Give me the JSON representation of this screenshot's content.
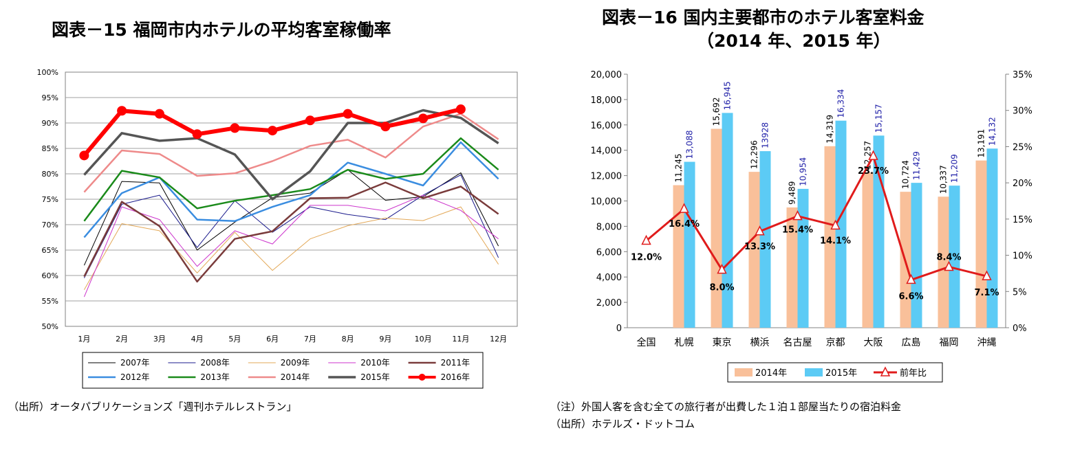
{
  "left": {
    "title": "図表－15  福岡市内ホテルの平均客室稼働率",
    "source": "（出所）オータパブリケーションズ「週刊ホテルレストラン」"
  },
  "right": {
    "title_line1": "図表－16  国内主要都市のホテル客室料金",
    "title_line2": "（2014 年、2015 年）",
    "note": "（注）外国人客を含む全ての旅行者が出費した１泊１部屋当たりの宿泊料金",
    "source": "（出所）ホテルズ・ドットコム"
  },
  "chart_data": [
    {
      "type": "line",
      "title": "図表－15  福岡市内ホテルの平均客室稼働率",
      "categories": [
        "1月",
        "2月",
        "3月",
        "4月",
        "5月",
        "6月",
        "7月",
        "8月",
        "9月",
        "10月",
        "11月",
        "12月"
      ],
      "ylim": [
        50,
        100
      ],
      "yticks": [
        "50%",
        "55%",
        "60%",
        "65%",
        "70%",
        "75%",
        "80%",
        "85%",
        "90%",
        "95%",
        "100%"
      ],
      "grid": true,
      "legend_placement": "bottom",
      "series": [
        {
          "name": "2007年",
          "color": "#000000",
          "width": 1,
          "values": [
            62,
            78.5,
            78.2,
            65,
            70.5,
            75.3,
            76.2,
            80.8,
            74.8,
            75.5,
            80.2,
            65.8
          ]
        },
        {
          "name": "2008年",
          "color": "#1a1a8c",
          "width": 1,
          "values": [
            59.5,
            74,
            75.8,
            65.5,
            74.7,
            68.5,
            73.5,
            72,
            71,
            75.8,
            79.8,
            63.5
          ]
        },
        {
          "name": "2009年",
          "color": "#e3a857",
          "width": 1,
          "values": [
            57.2,
            70.2,
            68.8,
            60.5,
            68.5,
            61,
            67.2,
            69.8,
            71.3,
            70.8,
            73.5,
            62.2
          ]
        },
        {
          "name": "2010年",
          "color": "#cc33cc",
          "width": 1,
          "values": [
            55.8,
            73.5,
            71,
            61.8,
            68.8,
            66.2,
            73.8,
            73.8,
            72.7,
            75.8,
            72.8,
            67.2
          ]
        },
        {
          "name": "2011年",
          "color": "#7a3b3b",
          "width": 2.5,
          "values": [
            59.8,
            74.5,
            69.7,
            58.8,
            67.2,
            68.7,
            75.2,
            75.3,
            78.3,
            75.2,
            77.5,
            72.1
          ]
        },
        {
          "name": "2012年",
          "color": "#3a8de0",
          "width": 2.5,
          "values": [
            67.5,
            76.2,
            79.3,
            71,
            70.7,
            73.5,
            75.8,
            82.2,
            80,
            77.7,
            86.2,
            79
          ]
        },
        {
          "name": "2013年",
          "color": "#1a8a1a",
          "width": 2.5,
          "values": [
            70.7,
            80.6,
            79.3,
            73.2,
            74.7,
            75.8,
            77,
            80.8,
            79,
            80,
            87,
            80.8
          ]
        },
        {
          "name": "2014年",
          "color": "#ee8a8a",
          "width": 2.5,
          "values": [
            76.4,
            84.6,
            83.9,
            79.6,
            80.1,
            82.5,
            85.5,
            86.7,
            83.2,
            89.3,
            91.8,
            86.8
          ]
        },
        {
          "name": "2015年",
          "color": "#555555",
          "width": 3.5,
          "values": [
            79.8,
            88,
            86.5,
            87,
            83.8,
            75,
            80.5,
            90,
            90,
            92.5,
            91,
            86
          ]
        },
        {
          "name": "2016年",
          "color": "#ff0000",
          "width": 6,
          "marker": true,
          "values": [
            83.6,
            92.4,
            91.8,
            87.8,
            89,
            88.5,
            90.5,
            91.8,
            89.3,
            90.9,
            92.7,
            null
          ]
        }
      ]
    },
    {
      "type": "bar",
      "title": "図表－16  国内主要都市のホテル客室料金（2014 年、2015 年）",
      "categories": [
        "全国",
        "札幌",
        "東京",
        "横浜",
        "名古屋",
        "京都",
        "大阪",
        "広島",
        "福岡",
        "沖縄"
      ],
      "ylim": [
        0,
        20000
      ],
      "yticks": [
        "0",
        "2,000",
        "4,000",
        "6,000",
        "8,000",
        "10,000",
        "12,000",
        "14,000",
        "16,000",
        "18,000",
        "20,000"
      ],
      "y2lim": [
        0,
        35
      ],
      "y2ticks": [
        "0%",
        "5%",
        "10%",
        "15%",
        "20%",
        "25%",
        "30%",
        "35%"
      ],
      "legend_placement": "bottom",
      "series": [
        {
          "name": "2014年",
          "color": "#f9c09a",
          "values": [
            null,
            11245,
            15692,
            12296,
            9489,
            14319,
            12257,
            10724,
            10337,
            13191
          ],
          "labels": [
            "",
            "11,245",
            "15,692",
            "12,296",
            "9,489",
            "14,319",
            "12,257",
            "10,724",
            "10,337",
            "13,191"
          ]
        },
        {
          "name": "2015年",
          "color": "#5ccbf5",
          "values": [
            null,
            13088,
            16945,
            13928,
            10954,
            16334,
            15157,
            11429,
            11209,
            14132
          ],
          "labels": [
            "",
            "13,088",
            "16,945",
            "13928",
            "10,954",
            "16,334",
            "15,157",
            "11,429",
            "11,209",
            "14,132"
          ]
        },
        {
          "name": "前年比",
          "color": "#e01b1b",
          "axis": "right",
          "values": [
            12.0,
            16.4,
            8.0,
            13.3,
            15.4,
            14.1,
            23.7,
            6.6,
            8.4,
            7.1
          ],
          "labels": [
            "12.0%",
            "16.4%",
            "8.0%",
            "13.3%",
            "15.4%",
            "14.1%",
            "23.7%",
            "6.6%",
            "8.4%",
            "7.1%"
          ]
        }
      ]
    }
  ]
}
